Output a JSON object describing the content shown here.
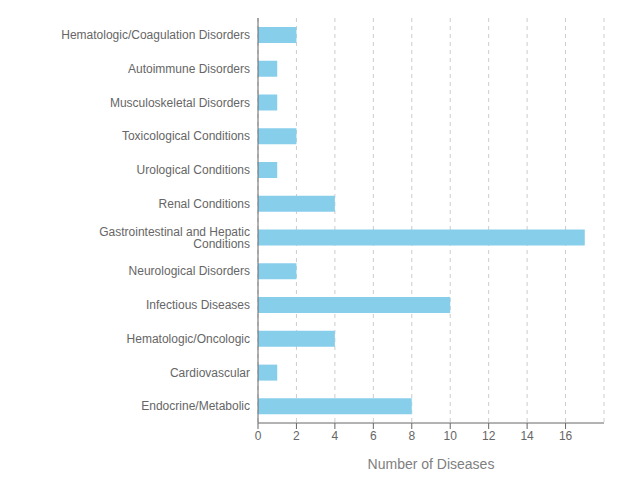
{
  "chart_data": {
    "type": "bar",
    "orientation": "horizontal",
    "categories": [
      "Hematologic/Coagulation Disorders",
      "Autoimmune Disorders",
      "Musculoskeletal Disorders",
      "Toxicological Conditions",
      "Urological Conditions",
      "Renal Conditions",
      "Gastrointestinal and Hepatic Conditions",
      "Neurological Disorders",
      "Infectious Diseases",
      "Hematologic/Oncologic",
      "Cardiovascular",
      "Endocrine/Metabolic"
    ],
    "values": [
      2,
      1,
      1,
      2,
      1,
      4,
      17,
      2,
      10,
      4,
      1,
      8
    ],
    "color": "#87CEEB",
    "xlabel": "Number of Diseases",
    "xlim": [
      0,
      18
    ],
    "xticks": [
      0,
      2,
      4,
      6,
      8,
      10,
      12,
      14,
      16
    ],
    "grid": true
  }
}
